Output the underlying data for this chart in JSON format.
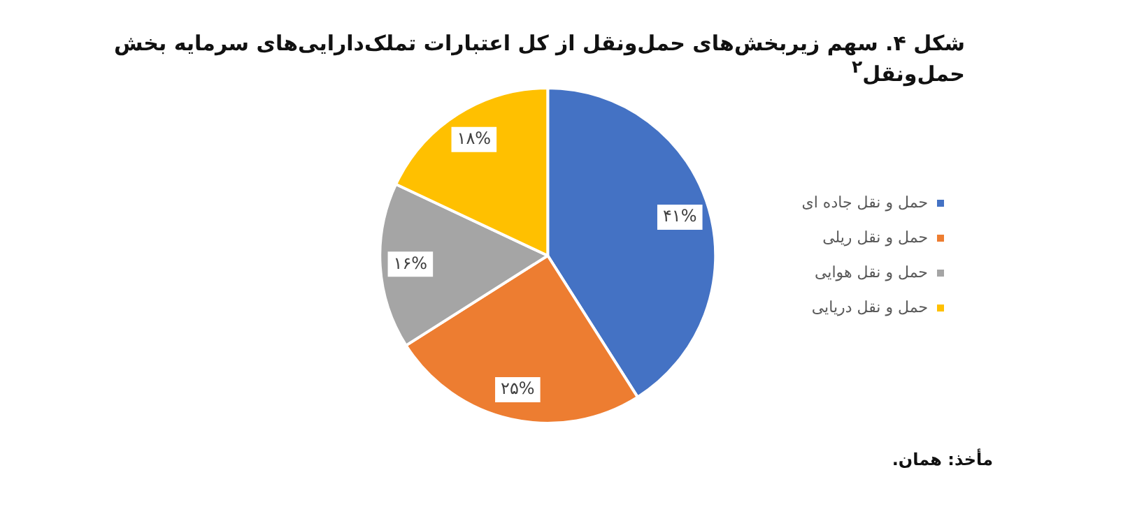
{
  "chart_data": {
    "type": "pie",
    "title": "شکل ۴. سهم زیربخش‌های حمل‌ونقل از کل اعتبارات تملک‌دارایی‌های سرمایه بخش حمل‌ونقل$^{۲}$",
    "categories": [
      "حمل و نقل جاده ای",
      "حمل و نقل ریلی",
      "حمل و نقل هوایی",
      "حمل و نقل دریایی"
    ],
    "values": [
      41,
      25,
      16,
      18
    ],
    "colors": [
      "#4472c4",
      "#ed7d31",
      "#a5a5a5",
      "#ffc000"
    ],
    "value_labels": [
      "۴۱%",
      "۲۵%",
      "۱۶%",
      "۱۸%"
    ],
    "legend": "right",
    "annotations": [
      "مأخذ: همان."
    ]
  }
}
